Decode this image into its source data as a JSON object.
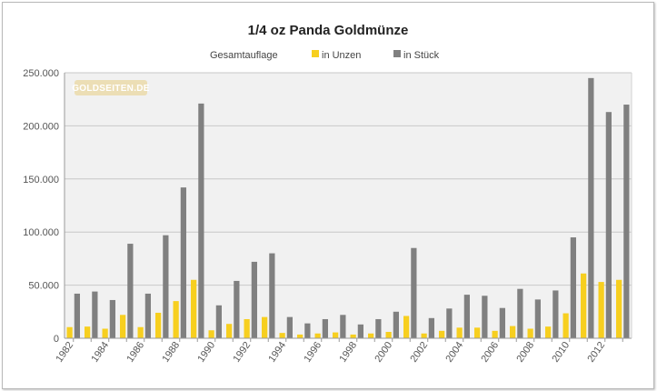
{
  "chart_data": {
    "type": "bar",
    "title": "1/4 oz Panda Goldmünze",
    "legend": {
      "title": "Gesamtauflage",
      "placement": "top-center"
    },
    "xlabel": "",
    "ylabel": "",
    "ylim": [
      0,
      250000
    ],
    "yticks": [
      "0",
      "50.000",
      "100.000",
      "150.000",
      "200.000",
      "250.000"
    ],
    "grid": true,
    "categories": [
      "1982",
      "1983",
      "1984",
      "1985",
      "1986",
      "1987",
      "1988",
      "1989",
      "1990",
      "1991",
      "1992",
      "1993",
      "1994",
      "1995",
      "1996",
      "1997",
      "1998",
      "1999",
      "2000",
      "2001",
      "2002",
      "2003",
      "2004",
      "2005",
      "2006",
      "2007",
      "2008",
      "2009",
      "2010",
      "2011",
      "2012",
      "2013"
    ],
    "x_tick_labels": [
      "1982",
      "1984",
      "1986",
      "1988",
      "1990",
      "1992",
      "1994",
      "1996",
      "1998",
      "2000",
      "2002",
      "2004",
      "2006",
      "2008",
      "2010",
      "2012"
    ],
    "series": [
      {
        "name": "in Unzen",
        "color": "#f7cf1f",
        "values": [
          10500,
          11000,
          9000,
          22000,
          10500,
          24000,
          35000,
          55000,
          7500,
          13500,
          18000,
          20000,
          5000,
          3500,
          4500,
          5500,
          3500,
          4500,
          6000,
          21000,
          4500,
          7000,
          10000,
          10000,
          7000,
          11500,
          9000,
          11000,
          23500,
          61000,
          53000,
          55000
        ]
      },
      {
        "name": "in Stück",
        "color": "#808080",
        "values": [
          42000,
          44000,
          36000,
          89000,
          42000,
          97000,
          142000,
          221000,
          31000,
          54000,
          72000,
          80000,
          20000,
          14000,
          18000,
          22000,
          13000,
          18000,
          25000,
          85000,
          19000,
          28000,
          41000,
          40000,
          28500,
          46500,
          36500,
          45000,
          95000,
          245000,
          213000,
          220000
        ]
      }
    ]
  },
  "watermark": {
    "text": "GOLDSEITEN.DE"
  }
}
